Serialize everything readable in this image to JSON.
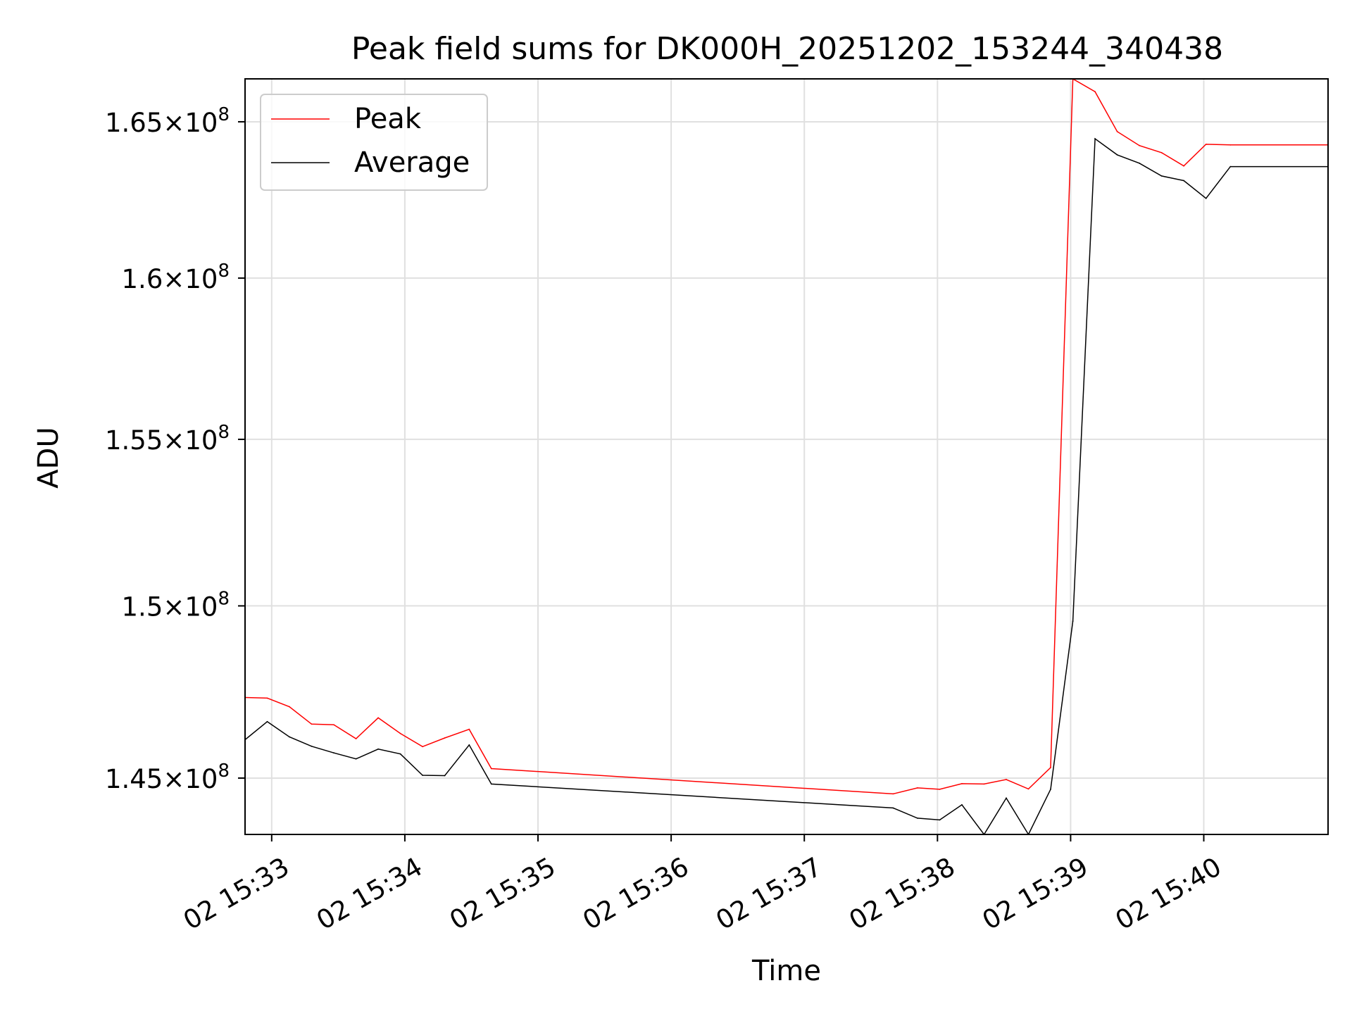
{
  "chart_data": {
    "type": "line",
    "title": "Peak field sums for DK000H_20251202_153244_340438",
    "xlabel": "Time",
    "ylabel": "ADU",
    "yscale": "log",
    "ylim": [
      143400000,
      166400000
    ],
    "xlim_minutes": [
      "15:32:48",
      "15:40:56"
    ],
    "grid": true,
    "legend_position": "upper-left",
    "x_ticks": [
      {
        "time": "15:33",
        "label": "02 15:33"
      },
      {
        "time": "15:34",
        "label": "02 15:34"
      },
      {
        "time": "15:35",
        "label": "02 15:35"
      },
      {
        "time": "15:36",
        "label": "02 15:36"
      },
      {
        "time": "15:37",
        "label": "02 15:37"
      },
      {
        "time": "15:38",
        "label": "02 15:38"
      },
      {
        "time": "15:39",
        "label": "02 15:39"
      },
      {
        "time": "15:40",
        "label": "02 15:40"
      }
    ],
    "y_ticks": [
      {
        "value": 145000000,
        "mantissa": "1.45",
        "exp": "8"
      },
      {
        "value": 150000000,
        "mantissa": "1.5",
        "exp": "8"
      },
      {
        "value": 155000000,
        "mantissa": "1.55",
        "exp": "8"
      },
      {
        "value": 160000000,
        "mantissa": "1.6",
        "exp": "8"
      },
      {
        "value": 165000000,
        "mantissa": "1.65",
        "exp": "8"
      }
    ],
    "series": [
      {
        "name": "Peak",
        "color": "#ff0000",
        "points": [
          [
            "15:32:48",
            147320000
          ],
          [
            "15:32:58",
            147300000
          ],
          [
            "15:33:08",
            147050000
          ],
          [
            "15:33:18",
            146550000
          ],
          [
            "15:33:28",
            146530000
          ],
          [
            "15:33:38",
            146130000
          ],
          [
            "15:33:48",
            146730000
          ],
          [
            "15:33:58",
            146280000
          ],
          [
            "15:34:08",
            145900000
          ],
          [
            "15:34:18",
            146150000
          ],
          [
            "15:34:29",
            146400000
          ],
          [
            "15:34:39",
            145270000
          ],
          [
            "15:37:40",
            144550000
          ],
          [
            "15:37:51",
            144720000
          ],
          [
            "15:38:01",
            144680000
          ],
          [
            "15:38:11",
            144840000
          ],
          [
            "15:38:21",
            144830000
          ],
          [
            "15:38:31",
            144960000
          ],
          [
            "15:38:41",
            144690000
          ],
          [
            "15:38:51",
            145300000
          ],
          [
            "15:39:01",
            166400000
          ],
          [
            "15:39:11",
            165980000
          ],
          [
            "15:39:21",
            164680000
          ],
          [
            "15:39:31",
            164230000
          ],
          [
            "15:39:41",
            164000000
          ],
          [
            "15:39:51",
            163570000
          ],
          [
            "15:40:01",
            164270000
          ],
          [
            "15:40:12",
            164250000
          ],
          [
            "15:40:56",
            164250000
          ]
        ]
      },
      {
        "name": "Average",
        "color": "#000000",
        "points": [
          [
            "15:32:48",
            146100000
          ],
          [
            "15:32:58",
            146620000
          ],
          [
            "15:33:08",
            146180000
          ],
          [
            "15:33:18",
            145910000
          ],
          [
            "15:33:28",
            145720000
          ],
          [
            "15:33:38",
            145550000
          ],
          [
            "15:33:48",
            145830000
          ],
          [
            "15:33:58",
            145690000
          ],
          [
            "15:34:08",
            145080000
          ],
          [
            "15:34:18",
            145070000
          ],
          [
            "15:34:29",
            145950000
          ],
          [
            "15:34:39",
            144830000
          ],
          [
            "15:37:40",
            144150000
          ],
          [
            "15:37:51",
            143860000
          ],
          [
            "15:38:01",
            143810000
          ],
          [
            "15:38:11",
            144240000
          ],
          [
            "15:38:21",
            143400000
          ],
          [
            "15:38:31",
            144430000
          ],
          [
            "15:38:41",
            143400000
          ],
          [
            "15:38:51",
            144680000
          ],
          [
            "15:39:01",
            149550000
          ],
          [
            "15:39:11",
            164450000
          ],
          [
            "15:39:21",
            163930000
          ],
          [
            "15:39:31",
            163660000
          ],
          [
            "15:39:41",
            163250000
          ],
          [
            "15:39:51",
            163100000
          ],
          [
            "15:40:01",
            162530000
          ],
          [
            "15:40:12",
            163550000
          ],
          [
            "15:40:56",
            163550000
          ]
        ]
      }
    ]
  }
}
